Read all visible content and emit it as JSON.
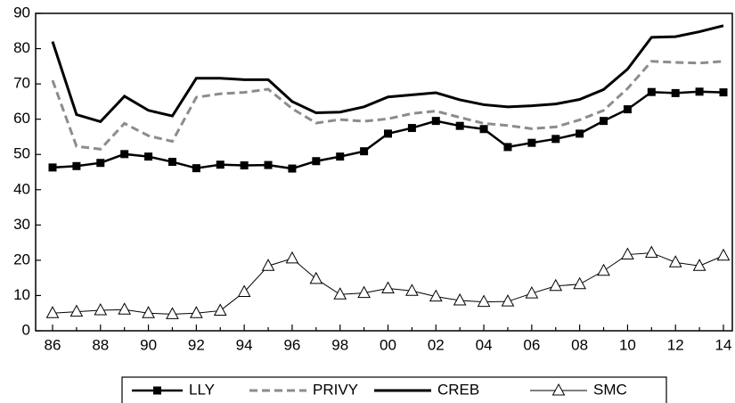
{
  "chart_data": {
    "type": "line",
    "categories": [
      "86",
      null,
      "88",
      null,
      "90",
      null,
      "92",
      null,
      "94",
      null,
      "96",
      null,
      "98",
      null,
      "00",
      null,
      "02",
      null,
      "04",
      null,
      "06",
      null,
      "08",
      null,
      "10",
      null,
      "12",
      null,
      "14"
    ],
    "series": [
      {
        "name": "LLY",
        "color": "#000000",
        "marker": "square",
        "dash": false,
        "width": 2.5,
        "values": [
          46.3,
          46.7,
          47.6,
          50.1,
          49.4,
          47.9,
          46.1,
          47.1,
          46.9,
          47.0,
          46.0,
          48.1,
          49.4,
          50.9,
          55.9,
          57.5,
          59.5,
          58.1,
          57.2,
          52.1,
          53.3,
          54.4,
          55.9,
          59.5,
          62.8,
          67.7,
          67.4,
          67.8,
          67.6
        ]
      },
      {
        "name": "PRIVY",
        "color": "#8c8c8c",
        "marker": "none",
        "dash": true,
        "width": 3,
        "values": [
          71.0,
          52.3,
          51.5,
          58.8,
          55.3,
          53.7,
          66.2,
          67.2,
          67.6,
          68.5,
          63.0,
          58.9,
          59.9,
          59.4,
          60.1,
          61.6,
          62.3,
          60.5,
          58.8,
          58.2,
          57.3,
          57.8,
          59.8,
          62.5,
          68.7,
          76.4,
          76.1,
          75.9,
          76.4
        ]
      },
      {
        "name": "CREB",
        "color": "#000000",
        "marker": "none",
        "dash": false,
        "width": 3,
        "values": [
          82.0,
          61.3,
          59.3,
          66.5,
          62.5,
          60.9,
          71.6,
          71.6,
          71.2,
          71.2,
          65.0,
          61.8,
          62.0,
          63.5,
          66.3,
          66.9,
          67.5,
          65.5,
          64.1,
          63.5,
          63.8,
          64.3,
          65.6,
          68.4,
          74.2,
          83.2,
          83.4,
          84.8,
          86.5
        ]
      },
      {
        "name": "SMC",
        "color": "#000000",
        "marker": "triangle",
        "dash": false,
        "width": 1,
        "values": [
          5.0,
          5.4,
          5.8,
          6.0,
          5.0,
          4.7,
          5.0,
          5.7,
          11.0,
          18.4,
          20.5,
          14.7,
          10.3,
          10.7,
          12.0,
          11.3,
          9.7,
          8.6,
          8.2,
          8.3,
          10.6,
          12.7,
          13.2,
          17.0,
          21.6,
          22.1,
          19.4,
          18.4,
          21.3
        ]
      }
    ],
    "ylim": [
      0,
      90
    ],
    "yticks": [
      0,
      10,
      20,
      30,
      40,
      50,
      60,
      70,
      80,
      90
    ],
    "grid": false,
    "legend": "bottom"
  }
}
